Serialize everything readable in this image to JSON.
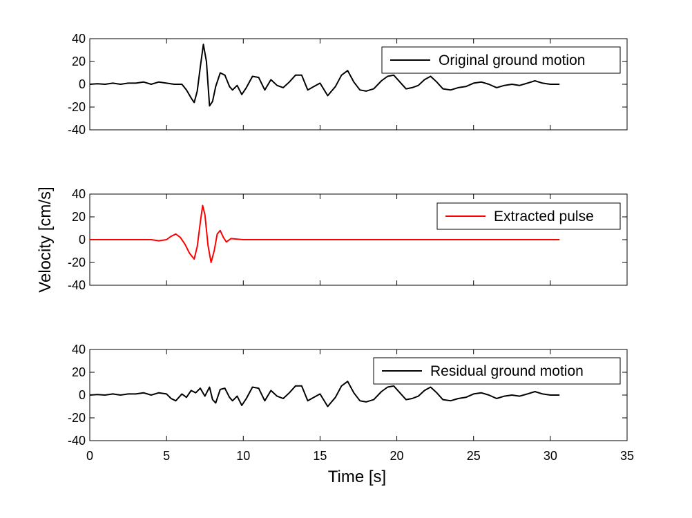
{
  "chart_data": [
    {
      "type": "line",
      "xlim": [
        0,
        35
      ],
      "ylim": [
        -40,
        40
      ],
      "yticks": [
        40,
        20,
        0,
        -20,
        -40
      ],
      "xticks": [
        0,
        5,
        10,
        15,
        20,
        25,
        30,
        35
      ],
      "show_xtick_labels": false,
      "grid": false,
      "legend_position": "top-right",
      "series": [
        {
          "name": "Original ground motion",
          "color": "#000000",
          "x": [
            0,
            0.5,
            1,
            1.5,
            2,
            2.5,
            3,
            3.5,
            4,
            4.5,
            5,
            5.5,
            6,
            6.3,
            6.6,
            6.8,
            7,
            7.2,
            7.4,
            7.6,
            7.8,
            8,
            8.2,
            8.5,
            8.8,
            9.1,
            9.3,
            9.6,
            9.9,
            10.2,
            10.6,
            11,
            11.4,
            11.8,
            12.2,
            12.6,
            13,
            13.4,
            13.8,
            14.2,
            14.6,
            15,
            15.5,
            16,
            16.4,
            16.8,
            17.2,
            17.6,
            18,
            18.5,
            19,
            19.4,
            19.8,
            20.2,
            20.6,
            21,
            21.4,
            21.8,
            22.2,
            22.6,
            23,
            23.5,
            24,
            24.5,
            25,
            25.5,
            26,
            26.5,
            27,
            27.5,
            28,
            28.5,
            29,
            29.5,
            30,
            30.6
          ],
          "y": [
            0,
            0.5,
            0,
            1,
            0,
            1,
            1,
            2,
            0,
            2,
            1,
            0,
            0,
            -5,
            -12,
            -16,
            -6,
            15,
            35,
            20,
            -19,
            -15,
            -2,
            10,
            8,
            -2,
            -5,
            -1,
            -9,
            -3,
            7,
            6,
            -5,
            4,
            -1,
            -3,
            2,
            8,
            8,
            -5,
            -2,
            1,
            -10,
            -2,
            8,
            12,
            2,
            -5,
            -6,
            -4,
            3,
            7,
            8,
            2,
            -4,
            -3,
            -1,
            4,
            7,
            2,
            -4,
            -5,
            -3,
            -2,
            1,
            2,
            0,
            -3,
            -1,
            0,
            -1,
            1,
            3,
            1,
            0,
            0
          ]
        }
      ]
    },
    {
      "type": "line",
      "xlim": [
        0,
        35
      ],
      "ylim": [
        -40,
        40
      ],
      "yticks": [
        40,
        20,
        0,
        -20,
        -40
      ],
      "xticks": [
        0,
        5,
        10,
        15,
        20,
        25,
        30,
        35
      ],
      "show_xtick_labels": false,
      "grid": false,
      "legend_position": "top-right",
      "ylabel": "Velocity [cm/s]",
      "series": [
        {
          "name": "Extracted pulse",
          "color": "#ff0000",
          "x": [
            0,
            3,
            4,
            4.5,
            5,
            5.3,
            5.6,
            5.9,
            6.2,
            6.5,
            6.8,
            7.0,
            7.2,
            7.35,
            7.5,
            7.7,
            7.9,
            8.1,
            8.3,
            8.5,
            8.7,
            8.9,
            9.2,
            9.6,
            10,
            11,
            12,
            15,
            20,
            25,
            30.6
          ],
          "y": [
            0,
            0,
            0,
            -1,
            0,
            3,
            5,
            2,
            -4,
            -12,
            -17,
            -6,
            15,
            30,
            22,
            -5,
            -20,
            -10,
            5,
            8,
            2,
            -2,
            1,
            0.5,
            0,
            0,
            0,
            0,
            0,
            0,
            0
          ]
        }
      ]
    },
    {
      "type": "line",
      "xlim": [
        0,
        35
      ],
      "ylim": [
        -40,
        40
      ],
      "yticks": [
        40,
        20,
        0,
        -20,
        -40
      ],
      "xticks": [
        0,
        5,
        10,
        15,
        20,
        25,
        30,
        35
      ],
      "show_xtick_labels": true,
      "grid": false,
      "legend_position": "top-right",
      "xlabel": "Time [s]",
      "series": [
        {
          "name": "Residual ground motion",
          "color": "#000000",
          "x": [
            0,
            0.5,
            1,
            1.5,
            2,
            2.5,
            3,
            3.5,
            4,
            4.5,
            5,
            5.3,
            5.6,
            6,
            6.3,
            6.6,
            6.9,
            7.2,
            7.5,
            7.8,
            8.0,
            8.2,
            8.5,
            8.8,
            9.1,
            9.3,
            9.6,
            9.9,
            10.2,
            10.6,
            11,
            11.4,
            11.8,
            12.2,
            12.6,
            13,
            13.4,
            13.8,
            14.2,
            14.6,
            15,
            15.5,
            16,
            16.4,
            16.8,
            17.2,
            17.6,
            18,
            18.5,
            19,
            19.4,
            19.8,
            20.2,
            20.6,
            21,
            21.4,
            21.8,
            22.2,
            22.6,
            23,
            23.5,
            24,
            24.5,
            25,
            25.5,
            26,
            26.5,
            27,
            27.5,
            28,
            28.5,
            29,
            29.5,
            30,
            30.6
          ],
          "y": [
            0,
            0.5,
            0,
            1,
            0,
            1,
            1,
            2,
            0,
            2,
            1,
            -3,
            -5,
            1,
            -2,
            4,
            2,
            6,
            -1,
            7,
            -4,
            -7,
            5,
            6,
            -2,
            -5,
            -1,
            -9,
            -3,
            7,
            6,
            -5,
            4,
            -1,
            -3,
            2,
            8,
            8,
            -5,
            -2,
            1,
            -10,
            -2,
            8,
            12,
            2,
            -5,
            -6,
            -4,
            3,
            7,
            8,
            2,
            -4,
            -3,
            -1,
            4,
            7,
            2,
            -4,
            -5,
            -3,
            -2,
            1,
            2,
            0,
            -3,
            -1,
            0,
            -1,
            1,
            3,
            1,
            0,
            0
          ]
        }
      ]
    }
  ]
}
